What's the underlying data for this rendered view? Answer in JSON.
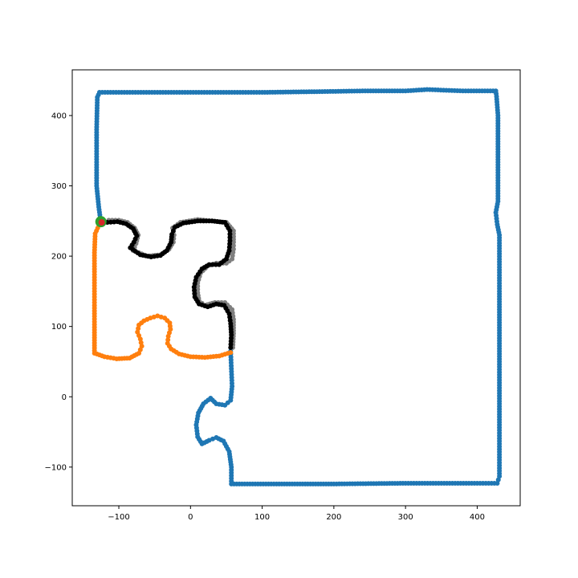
{
  "chart_data": {
    "type": "scatter",
    "title": "",
    "xlabel": "",
    "ylabel": "",
    "xlim": [
      -165,
      460
    ],
    "ylim": [
      -155,
      465
    ],
    "xticks": [
      -100,
      0,
      100,
      200,
      300,
      400
    ],
    "yticks": [
      -100,
      0,
      100,
      200,
      300,
      400
    ],
    "xtick_labels": [
      "−100",
      "0",
      "100",
      "200",
      "300",
      "400"
    ],
    "ytick_labels": [
      "−100",
      "0",
      "100",
      "200",
      "300",
      "400"
    ],
    "grid": false,
    "legend": "none",
    "series": [
      {
        "color": "#1f77b4",
        "marker_size": 6,
        "points": [
          [
            56,
            65
          ],
          [
            57,
            40
          ],
          [
            58,
            15
          ],
          [
            56,
            -5
          ],
          [
            48,
            -12
          ],
          [
            36,
            -10
          ],
          [
            28,
            -2
          ],
          [
            18,
            -10
          ],
          [
            11,
            -23
          ],
          [
            8,
            -40
          ],
          [
            10,
            -57
          ],
          [
            16,
            -67
          ],
          [
            26,
            -62
          ],
          [
            36,
            -58
          ],
          [
            46,
            -63
          ],
          [
            54,
            -78
          ],
          [
            57,
            -100
          ],
          [
            57,
            -124
          ],
          [
            120,
            -124
          ],
          [
            200,
            -124
          ],
          [
            300,
            -123
          ],
          [
            350,
            -123
          ],
          [
            400,
            -123
          ],
          [
            428,
            -123
          ],
          [
            431,
            -113
          ],
          [
            431,
            -40
          ],
          [
            431,
            50
          ],
          [
            431,
            150
          ],
          [
            431,
            230
          ],
          [
            428,
            245
          ],
          [
            426,
            262
          ],
          [
            429,
            278
          ],
          [
            429,
            330
          ],
          [
            429,
            400
          ],
          [
            427,
            427
          ],
          [
            426,
            435
          ],
          [
            380,
            435
          ],
          [
            330,
            437
          ],
          [
            300,
            435
          ],
          [
            240,
            435
          ],
          [
            180,
            434
          ],
          [
            100,
            433
          ],
          [
            50,
            433
          ],
          [
            0,
            433
          ],
          [
            -50,
            433
          ],
          [
            -100,
            433
          ],
          [
            -127,
            433
          ],
          [
            -130,
            426
          ],
          [
            -131,
            380
          ],
          [
            -131,
            330
          ],
          [
            -131,
            300
          ],
          [
            -128,
            270
          ],
          [
            -126,
            255
          ]
        ]
      },
      {
        "color": "#ff7f0e",
        "marker_size": 6,
        "points": [
          [
            -126,
            248
          ],
          [
            -133,
            232
          ],
          [
            -134,
            205
          ],
          [
            -134,
            170
          ],
          [
            -134,
            130
          ],
          [
            -134,
            95
          ],
          [
            -134,
            62
          ],
          [
            -120,
            57
          ],
          [
            -103,
            54
          ],
          [
            -85,
            55
          ],
          [
            -72,
            62
          ],
          [
            -68,
            72
          ],
          [
            -70,
            82
          ],
          [
            -74,
            92
          ],
          [
            -72,
            102
          ],
          [
            -65,
            108
          ],
          [
            -56,
            112
          ],
          [
            -46,
            115
          ],
          [
            -36,
            112
          ],
          [
            -29,
            105
          ],
          [
            -28,
            96
          ],
          [
            -31,
            86
          ],
          [
            -32,
            76
          ],
          [
            -27,
            68
          ],
          [
            -16,
            61
          ],
          [
            0,
            57
          ],
          [
            20,
            56
          ],
          [
            40,
            58
          ],
          [
            56,
            63
          ]
        ]
      },
      {
        "color": "#7f7f7f",
        "marker_size": 6,
        "points": [
          [
            -114,
            251
          ],
          [
            -100,
            251
          ],
          [
            -88,
            248
          ],
          [
            -78,
            240
          ],
          [
            -73,
            230
          ],
          [
            -76,
            218
          ],
          [
            -80,
            208
          ],
          [
            -60,
            200
          ],
          [
            -42,
            202
          ],
          [
            -30,
            210
          ],
          [
            -24,
            220
          ],
          [
            -23,
            230
          ],
          [
            -25,
            240
          ],
          [
            -14,
            248
          ],
          [
            10,
            252
          ],
          [
            30,
            250
          ],
          [
            50,
            248
          ],
          [
            60,
            236
          ],
          [
            60,
            220
          ],
          [
            60,
            210
          ],
          [
            58,
            196
          ],
          [
            50,
            190
          ],
          [
            36,
            190
          ],
          [
            24,
            186
          ],
          [
            14,
            176
          ],
          [
            10,
            162
          ],
          [
            10,
            148
          ],
          [
            12,
            136
          ],
          [
            20,
            130
          ],
          [
            34,
            134
          ],
          [
            48,
            134
          ],
          [
            58,
            124
          ],
          [
            60,
            110
          ],
          [
            60,
            90
          ],
          [
            59,
            70
          ]
        ]
      },
      {
        "color": "#000000",
        "marker_size": 6,
        "points": [
          [
            -116,
            248
          ],
          [
            -102,
            249
          ],
          [
            -90,
            246
          ],
          [
            -80,
            239
          ],
          [
            -75,
            229
          ],
          [
            -79,
            220
          ],
          [
            -84,
            212
          ],
          [
            -70,
            202
          ],
          [
            -55,
            199
          ],
          [
            -42,
            201
          ],
          [
            -33,
            208
          ],
          [
            -27,
            220
          ],
          [
            -26,
            231
          ],
          [
            -22,
            241
          ],
          [
            -10,
            247
          ],
          [
            10,
            250
          ],
          [
            30,
            250
          ],
          [
            48,
            248
          ],
          [
            55,
            236
          ],
          [
            55,
            222
          ],
          [
            54,
            208
          ],
          [
            50,
            196
          ],
          [
            40,
            188
          ],
          [
            26,
            188
          ],
          [
            16,
            182
          ],
          [
            8,
            170
          ],
          [
            5,
            156
          ],
          [
            6,
            142
          ],
          [
            12,
            132
          ],
          [
            24,
            128
          ],
          [
            36,
            132
          ],
          [
            47,
            130
          ],
          [
            54,
            118
          ],
          [
            56,
            104
          ],
          [
            57,
            88
          ],
          [
            56,
            70
          ]
        ]
      },
      {
        "color": "#2ca02c",
        "marker_size": 14,
        "points": [
          [
            -125,
            249
          ]
        ]
      },
      {
        "color": "#d62728",
        "marker_size": 8,
        "points": [
          [
            -124,
            248
          ]
        ]
      }
    ]
  }
}
